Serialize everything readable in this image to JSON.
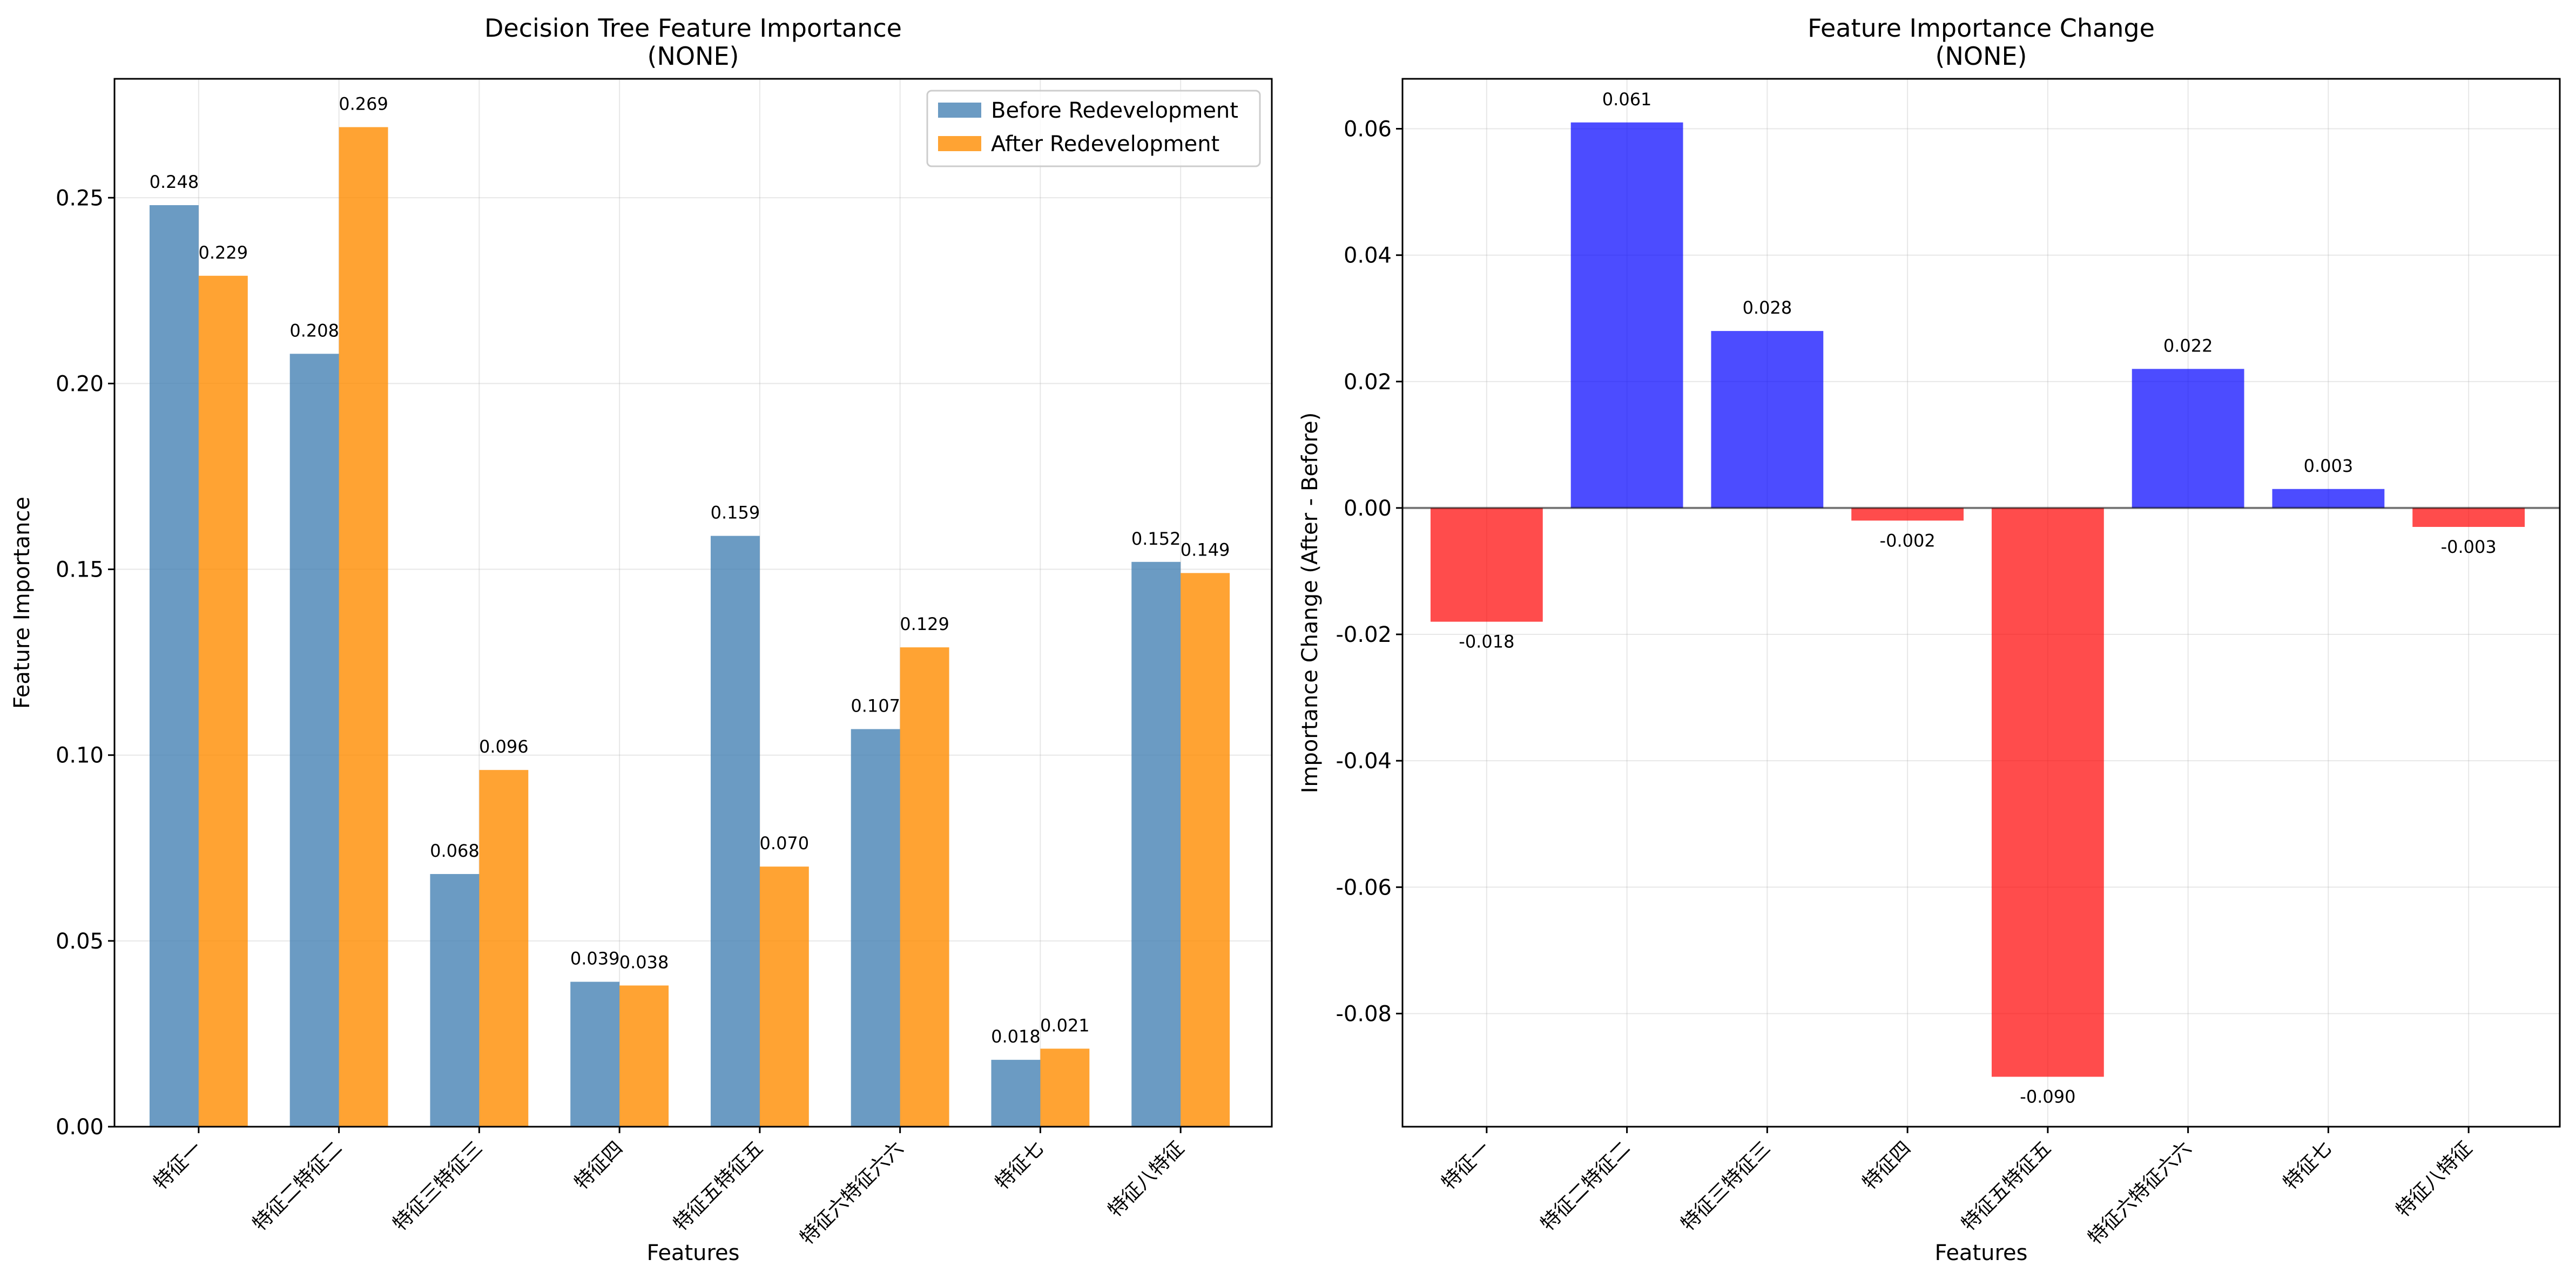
{
  "chart_data": [
    {
      "type": "bar",
      "title": "Decision Tree Feature Importance\n(NONE)",
      "xlabel": "Features",
      "ylabel": "Feature Importance",
      "categories": [
        "特征一",
        "特征二特征二",
        "特征三特征三",
        "特征四",
        "特征五特征五",
        "特征六特征六六",
        "特征七",
        "特征八特征"
      ],
      "series": [
        {
          "name": "Before Redevelopment",
          "color": "#4682B4",
          "values": [
            0.248,
            0.208,
            0.068,
            0.039,
            0.159,
            0.107,
            0.018,
            0.152
          ],
          "labels": [
            "0.248",
            "0.208",
            "0.068",
            "0.039",
            "0.159",
            "0.107",
            "0.018",
            "0.152"
          ]
        },
        {
          "name": "After Redevelopment",
          "color": "#FF8C00",
          "values": [
            0.229,
            0.269,
            0.096,
            0.038,
            0.07,
            0.129,
            0.021,
            0.149
          ],
          "labels": [
            "0.229",
            "0.269",
            "0.096",
            "0.038",
            "0.070",
            "0.129",
            "0.021",
            "0.149"
          ]
        }
      ],
      "ylim": [
        0,
        0.282
      ],
      "yticks": [
        0.0,
        0.05,
        0.1,
        0.15,
        0.2,
        0.25
      ],
      "ytick_labels": [
        "0.00",
        "0.05",
        "0.10",
        "0.15",
        "0.20",
        "0.25"
      ],
      "grid": true,
      "legend": "top-right"
    },
    {
      "type": "bar",
      "title": "Feature Importance Change\n(NONE)",
      "xlabel": "Features",
      "ylabel": "Importance Change (After - Before)",
      "categories": [
        "特征一",
        "特征二特征二",
        "特征三特征三",
        "特征四",
        "特征五特征五",
        "特征六特征六六",
        "特征七",
        "特征八特征"
      ],
      "values": [
        -0.018,
        0.061,
        0.028,
        -0.002,
        -0.09,
        0.022,
        0.003,
        -0.003
      ],
      "labels": [
        "-0.018",
        "0.061",
        "0.028",
        "-0.002",
        "-0.090",
        "0.022",
        "0.003",
        "-0.003"
      ],
      "positive_color": "#0000FF",
      "negative_color": "#FF0000",
      "ylim": [
        -0.0979,
        0.0679
      ],
      "yticks": [
        -0.08,
        -0.06,
        -0.04,
        -0.02,
        0.0,
        0.02,
        0.04,
        0.06
      ],
      "ytick_labels": [
        "-0.08",
        "-0.06",
        "-0.04",
        "-0.02",
        "0.00",
        "0.02",
        "0.04",
        "0.06"
      ],
      "grid": true
    }
  ]
}
